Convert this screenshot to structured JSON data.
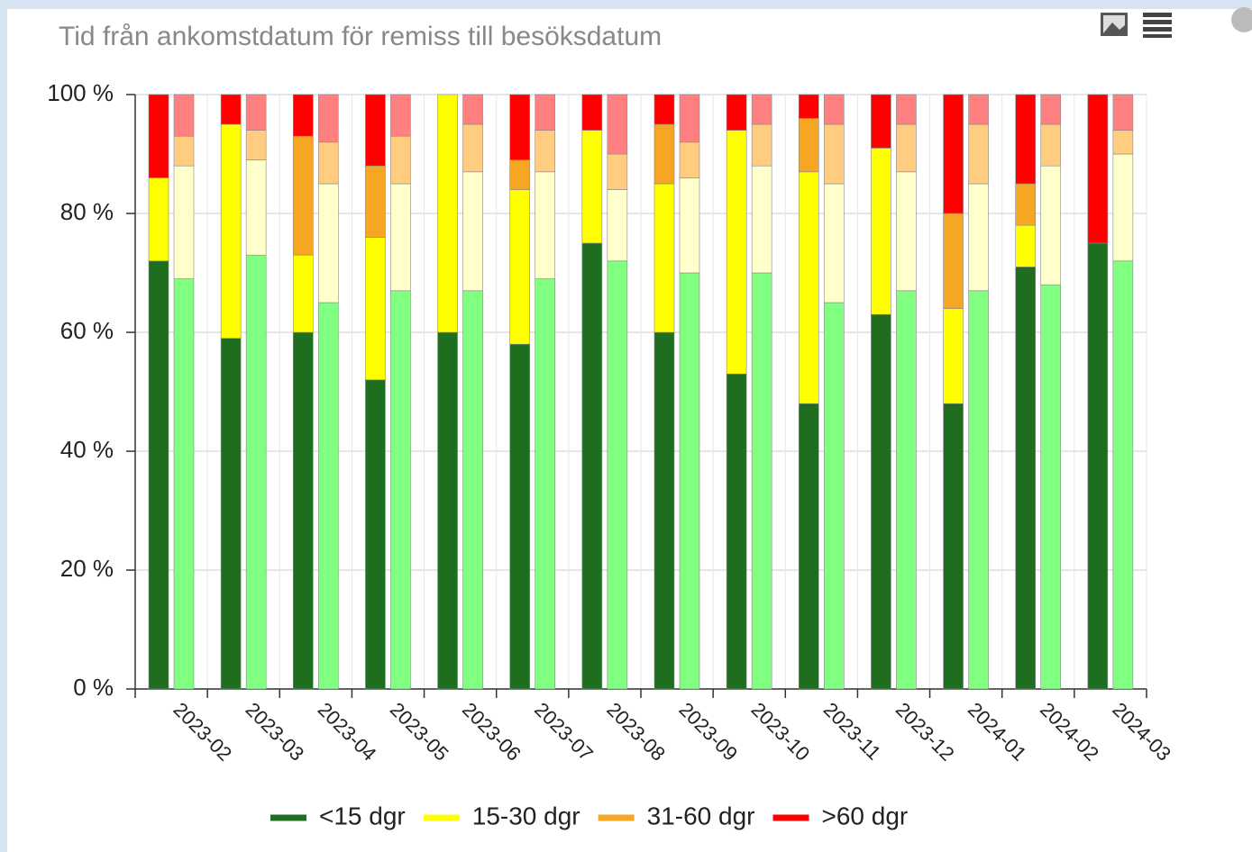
{
  "chart_data": {
    "type": "stacked_bar",
    "title": "Tid från ankomstdatum för remiss till besöksdatum",
    "categories": [
      "2023-02",
      "2023-03",
      "2023-04",
      "2023-05",
      "2023-06",
      "2023-07",
      "2023-08",
      "2023-09",
      "2023-10",
      "2023-11",
      "2023-12",
      "2024-01",
      "2024-02",
      "2024-03"
    ],
    "series": [
      {
        "name": "<15 dgr",
        "color": "#1f6e1f",
        "compare_color": "#80ff80",
        "values": [
          72,
          59,
          60,
          52,
          60,
          58,
          75,
          60,
          53,
          48,
          63,
          48,
          71,
          75
        ],
        "compare_values": [
          69,
          73,
          65,
          67,
          67,
          69,
          72,
          70,
          70,
          65,
          67,
          67,
          68,
          72
        ]
      },
      {
        "name": "15-30 dgr",
        "color": "#ffff00",
        "compare_color": "#ffffcc",
        "values": [
          14,
          36,
          13,
          24,
          40,
          26,
          19,
          25,
          41,
          39,
          28,
          16,
          7,
          0
        ],
        "compare_values": [
          19,
          16,
          20,
          18,
          20,
          18,
          12,
          16,
          18,
          20,
          20,
          18,
          20,
          18
        ]
      },
      {
        "name": "31-60 dgr",
        "color": "#f5a623",
        "compare_color": "#ffcc80",
        "values": [
          0,
          0,
          20,
          12,
          0,
          5,
          0,
          10,
          0,
          9,
          0,
          16,
          7,
          0
        ],
        "compare_values": [
          5,
          5,
          7,
          8,
          8,
          7,
          6,
          6,
          7,
          10,
          8,
          10,
          7,
          4
        ]
      },
      {
        "name": ">60 dgr",
        "color": "#ff0000",
        "compare_color": "#ff8080",
        "values": [
          14,
          5,
          7,
          12,
          0,
          11,
          6,
          5,
          6,
          4,
          9,
          20,
          15,
          25
        ],
        "compare_values": [
          7,
          6,
          8,
          7,
          5,
          6,
          10,
          8,
          5,
          5,
          5,
          5,
          5,
          6
        ]
      }
    ],
    "ylim": [
      0,
      100
    ],
    "yticks": [
      {
        "value": 0,
        "label": "0 %"
      },
      {
        "value": 20,
        "label": "20 %"
      },
      {
        "value": 40,
        "label": "40 %"
      },
      {
        "value": 60,
        "label": "60 %"
      },
      {
        "value": 80,
        "label": "80 %"
      },
      {
        "value": 100,
        "label": "100 %"
      }
    ],
    "grid": true,
    "legend": "bottom"
  }
}
